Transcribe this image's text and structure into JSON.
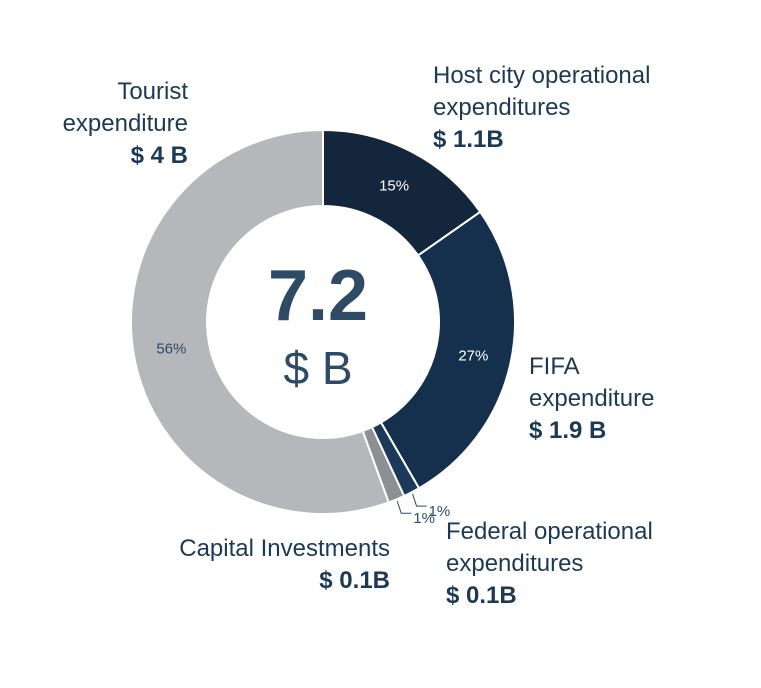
{
  "chart_data": {
    "type": "pie",
    "center": {
      "total": "7.2",
      "unit": "$ B"
    },
    "slices": [
      {
        "name": "Host city operational expenditures",
        "value_label": "$ 1.1B",
        "value": 1.1,
        "percent": 15,
        "pct_label": "15%",
        "color": "#14263b"
      },
      {
        "name": "FIFA expenditure",
        "value_label": "$ 1.9 B",
        "value": 1.9,
        "percent": 27,
        "pct_label": "27%",
        "color": "#14304d"
      },
      {
        "name": "Federal operational expenditures",
        "value_label": "$ 0.1B",
        "value": 0.1,
        "percent": 1,
        "pct_label": "1%",
        "color": "#1b3a5b"
      },
      {
        "name": "Capital Investments",
        "value_label": "$ 0.1B",
        "value": 0.1,
        "percent": 1,
        "pct_label": "1%",
        "color": "#8c8f93"
      },
      {
        "name": "Tourist expenditure",
        "value_label": "$ 4 B",
        "value": 4,
        "percent": 56,
        "pct_label": "56%",
        "color": "#b5b7ba"
      }
    ]
  },
  "labels": {
    "host": {
      "line1": "Host city operational",
      "line2": "expenditures",
      "value": "$ 1.1B"
    },
    "fifa": {
      "line1": "FIFA",
      "line2": "expenditure",
      "value": "$ 1.9 B"
    },
    "federal": {
      "line1": "Federal operational",
      "line2": "expenditures",
      "value": "$ 0.1B"
    },
    "capital": {
      "line1": "Capital Investments",
      "value": "$ 0.1B"
    },
    "tourist": {
      "line1": "Tourist",
      "line2": "expenditure",
      "value": "$ 4 B"
    }
  }
}
